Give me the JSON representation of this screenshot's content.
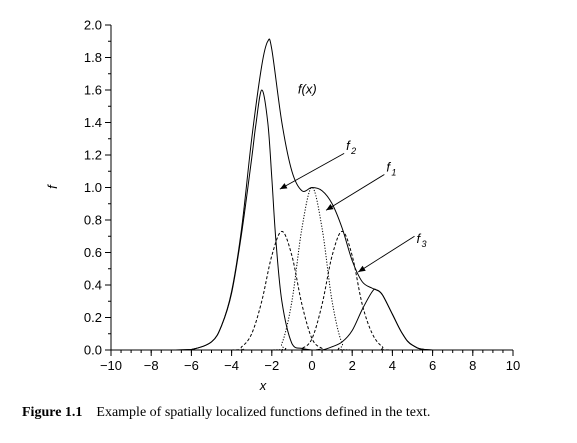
{
  "chart_data": {
    "type": "line",
    "title": "",
    "xlabel": "x",
    "ylabel": "f",
    "xlim": [
      -10,
      10
    ],
    "ylim": [
      0,
      2.0
    ],
    "x_ticks": [
      -10,
      -8,
      -6,
      -4,
      -2,
      0,
      2,
      4,
      6,
      8,
      10
    ],
    "y_ticks": [
      0.0,
      0.2,
      0.4,
      0.6,
      0.8,
      1.0,
      1.2,
      1.4,
      1.6,
      1.8,
      2.0
    ],
    "x_minor_step": 0.5,
    "y_minor_step": 0.1,
    "grid": false,
    "series": [
      {
        "style": "solid",
        "x": [
          -10,
          -8,
          -7,
          -6,
          -5,
          -4.5,
          -4,
          -3.5,
          -3,
          -2.8,
          -2.5,
          -2.2,
          -2,
          -1.8,
          -1.5,
          -1,
          -0.5,
          0,
          0.5,
          1,
          1.5,
          2,
          2.5,
          3,
          3.5,
          4,
          4.5,
          5,
          6,
          10
        ],
        "y": [
          0.0,
          0.0,
          0.0,
          0.003,
          0.05,
          0.15,
          0.35,
          0.72,
          1.18,
          1.38,
          1.6,
          1.4,
          1.06,
          0.68,
          0.3,
          0.04,
          0.01,
          0.0,
          0.0,
          0.0,
          0.0,
          0.0,
          0.0,
          0.0,
          0.0,
          0.0,
          0.0,
          0.0,
          0.0,
          0.0
        ]
      },
      {
        "style": "dashed",
        "x": [
          -10,
          -4,
          -3.5,
          -3,
          -2.5,
          -2,
          -1.5,
          -1,
          -0.5,
          0,
          0.5,
          1,
          10
        ],
        "y": [
          0.0,
          0.0,
          0.02,
          0.1,
          0.3,
          0.58,
          0.73,
          0.58,
          0.28,
          0.07,
          0.01,
          0.0,
          0.0
        ]
      },
      {
        "style": "dotted",
        "x": [
          -10,
          -2,
          -1.5,
          -1,
          -0.5,
          0,
          0.5,
          1,
          1.5,
          2,
          10
        ],
        "y": [
          0.0,
          0.0,
          0.04,
          0.3,
          0.75,
          1.0,
          0.75,
          0.3,
          0.04,
          0.0,
          0.0
        ]
      },
      {
        "style": "dashed",
        "x": [
          -10,
          -1,
          -0.5,
          0,
          0.5,
          1,
          1.5,
          2,
          2.5,
          3,
          3.5,
          4,
          10
        ],
        "y": [
          0.0,
          0.0,
          0.01,
          0.07,
          0.28,
          0.58,
          0.73,
          0.58,
          0.28,
          0.1,
          0.02,
          0.0,
          0.0
        ]
      },
      {
        "style": "solid",
        "x": [
          -10,
          0,
          0.5,
          1,
          1.5,
          2,
          2.5,
          3,
          3.2,
          3.5,
          4,
          4.5,
          5,
          6,
          10
        ],
        "y": [
          0.0,
          0.0,
          0.0,
          0.02,
          0.05,
          0.12,
          0.25,
          0.36,
          0.37,
          0.34,
          0.22,
          0.1,
          0.03,
          0.0,
          0.0
        ]
      },
      {
        "style": "solid",
        "x": [
          -10,
          -8,
          -7,
          -6,
          -5,
          -4.5,
          -4,
          -3.5,
          -3,
          -2.5,
          -2.2,
          -2,
          -1.5,
          -1,
          -0.5,
          0,
          0.5,
          1,
          1.5,
          2,
          2.5,
          3,
          3.2,
          3.5,
          4,
          4.5,
          5,
          6,
          10
        ],
        "y": [
          0.0,
          0.0,
          0.0,
          0.003,
          0.05,
          0.15,
          0.36,
          0.75,
          1.3,
          1.75,
          1.9,
          1.85,
          1.4,
          1.1,
          0.98,
          1.0,
          0.98,
          0.9,
          0.75,
          0.55,
          0.42,
          0.38,
          0.37,
          0.34,
          0.22,
          0.1,
          0.03,
          0.0,
          0.0
        ]
      }
    ],
    "annotations": [
      {
        "text": "f(x)",
        "sub": "",
        "x": -0.7,
        "y": 1.58,
        "arrow": null
      },
      {
        "text": "f",
        "sub": "2",
        "x": 1.7,
        "y": 1.23,
        "arrow": {
          "from": [
            1.6,
            1.21
          ],
          "to": [
            -1.6,
            0.99
          ]
        }
      },
      {
        "text": "f",
        "sub": "1",
        "x": 3.7,
        "y": 1.1,
        "arrow": {
          "from": [
            3.6,
            1.08
          ],
          "to": [
            0.7,
            0.86
          ]
        }
      },
      {
        "text": "f",
        "sub": "3",
        "x": 5.2,
        "y": 0.66,
        "arrow": {
          "from": [
            5.1,
            0.7
          ],
          "to": [
            2.3,
            0.48
          ]
        }
      }
    ]
  },
  "caption": {
    "label": "Figure 1.1",
    "text": "Example of spatially localized functions defined in the text."
  }
}
